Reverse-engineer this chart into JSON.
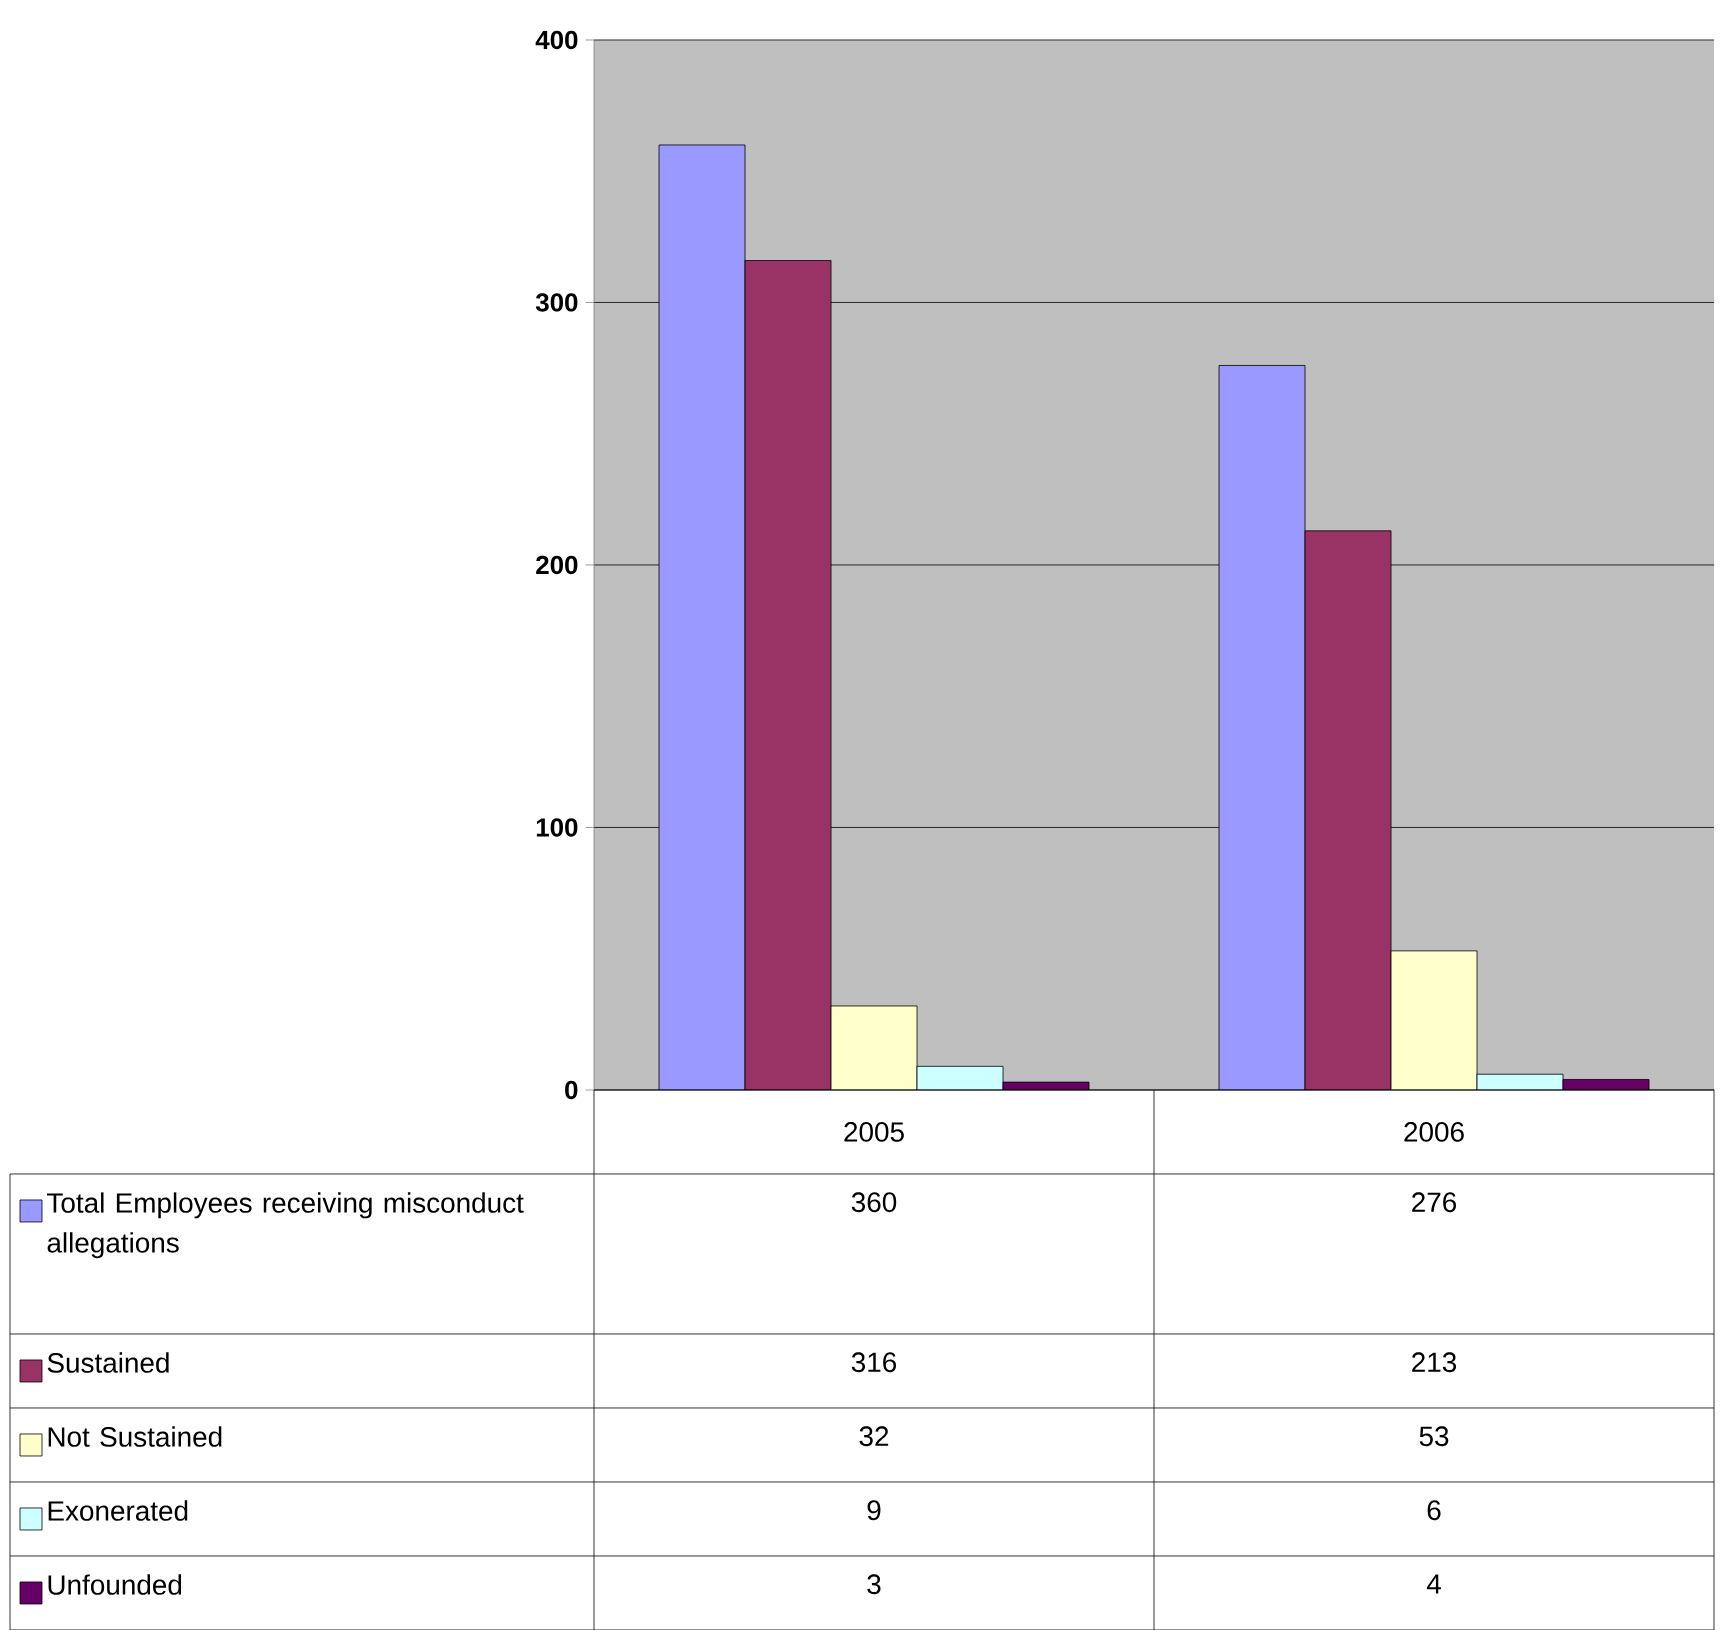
{
  "chart_data": {
    "type": "bar",
    "categories": [
      "2005",
      "2006"
    ],
    "series": [
      {
        "name": "Total Employees receiving misconduct allegations",
        "color": "#9999ff",
        "values": [
          360,
          276
        ]
      },
      {
        "name": "Sustained",
        "color": "#993366",
        "values": [
          316,
          213
        ]
      },
      {
        "name": "Not Sustained",
        "color": "#ffffcc",
        "values": [
          32,
          53
        ]
      },
      {
        "name": "Exonerated",
        "color": "#ccffff",
        "values": [
          9,
          6
        ]
      },
      {
        "name": "Unfounded",
        "color": "#660066",
        "values": [
          3,
          4
        ]
      }
    ],
    "ylim": [
      0,
      400
    ],
    "yticks": [
      0,
      100,
      200,
      300,
      400
    ],
    "grid": "y",
    "legend": "bottom",
    "data_labels": true
  }
}
